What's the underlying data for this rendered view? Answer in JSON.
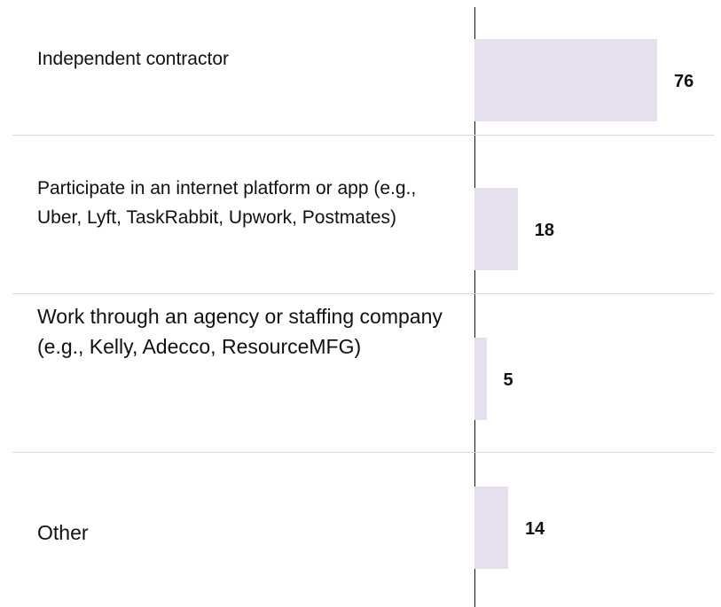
{
  "chart_data": {
    "type": "bar",
    "orientation": "horizontal",
    "categories": [
      "Independent contractor",
      "Participate in an internet platform or app (e.g., Uber, Lyft, TaskRabbit, Upwork, Postmates)",
      "Work through an agency or staffing company (e.g., Kelly, Adecco, ResourceMFG)",
      "Other"
    ],
    "values": [
      76,
      18,
      5,
      14
    ],
    "color": "#e6e0ee"
  }
}
